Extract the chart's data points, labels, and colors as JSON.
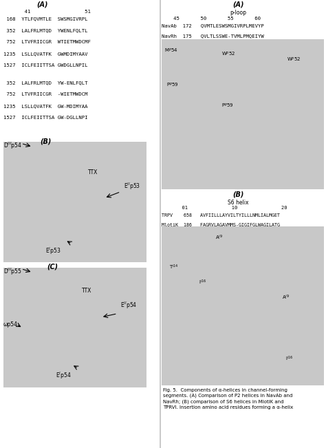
{
  "fig_width": 4.74,
  "fig_height": 6.51,
  "bg_color": "#ffffff",
  "caption_text": "Fig. 5.  Components of α-helices in channel-forming\nsegments. (A) Comparison of P2 helices in NavAb and\nNavRh; (B) comparison of S6 helices in MlotiK and\nTRPVI. Insertion amino acid residues forming a α-helix",
  "left_panel": {
    "title_A": "(A)",
    "seq_block1": [
      " 168  YTLFQVMTLE  SWSMGIVRPL",
      " 352  LALFRLMTQD  YWENLFQLTL",
      " 752  LTVFRIICGR  WTIETMWDCMF",
      "1235  LSLLQVATFK  GWMDIMYAAV",
      "1527  ICLFEIITTSA GWDGLLNPIL"
    ],
    "seq_block2": [
      " 352  LALFRLMTQD  YW-ENLFQLT",
      " 752  LTVFRIICGR  -WIETMWDCM",
      "1235  LSLLQVATFK  GW-MDIMYAA",
      "1527  ICLFEIITTSA GW-DGLLNPI"
    ]
  },
  "right_panel": {
    "title_A": "(A)",
    "ploop_label": "p-loop",
    "seq_navab": "NavAb  172   QVMTLESWSMGIVRPLMEVYP",
    "seq_navrh": "NavRh  175   QVLTLSSWE-TVMLPMQEIYW",
    "title_B": "(B)",
    "s6_label": "S6 helix",
    "seq_trpv": "TRPV    658   AVFIILLLAYVILTYILLLNMLIALMGET",
    "seq_mlotik": "MlotiK  186   FAGRVLAGAVMMS-GIGIFGLWAGILATG"
  }
}
